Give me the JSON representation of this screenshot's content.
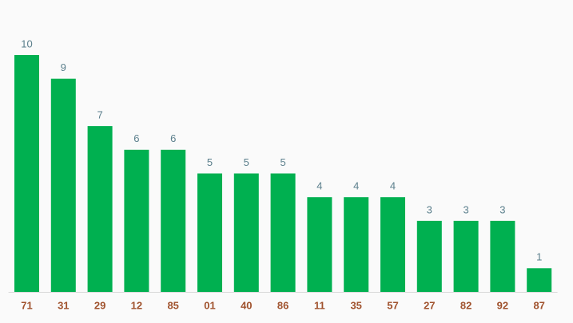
{
  "chart_data": {
    "type": "bar",
    "categories": [
      "71",
      "31",
      "29",
      "12",
      "85",
      "01",
      "40",
      "86",
      "11",
      "35",
      "57",
      "27",
      "82",
      "92",
      "87"
    ],
    "values": [
      10,
      9,
      7,
      6,
      6,
      5,
      5,
      5,
      4,
      4,
      4,
      3,
      3,
      3,
      1
    ],
    "color": "#00b050"
  }
}
